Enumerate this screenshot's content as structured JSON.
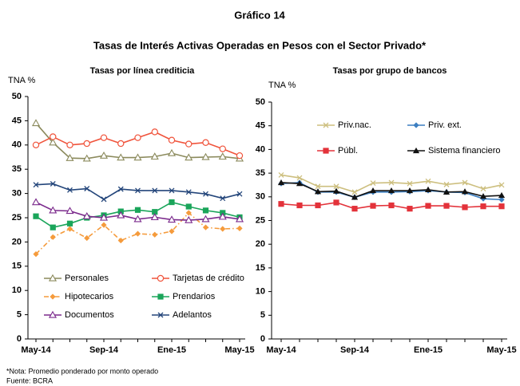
{
  "title": "Gráfico 14",
  "subtitle": "Tasas de Interés Activas Operadas en Pesos con el Sector Privado*",
  "notes": [
    "*Nota: Promedio ponderado por monto operado",
    "Fuente: BCRA"
  ],
  "chart_data": [
    {
      "type": "line",
      "title": "Tasas por línea crediticia",
      "ylabel": "TNA %",
      "categories": [
        "May-14",
        null,
        null,
        null,
        "Sep-14",
        null,
        null,
        null,
        "Ene-15",
        null,
        null,
        null,
        "May-15"
      ],
      "ylim": [
        0,
        50
      ],
      "yticks": [
        0,
        5,
        10,
        15,
        20,
        25,
        30,
        35,
        40,
        45,
        50
      ],
      "legend": "lower",
      "series": [
        {
          "name": "Personales",
          "color": "#8b8a5c",
          "marker": "triangle-open",
          "dash": "solid",
          "values": [
            44.5,
            40.5,
            37.3,
            37.2,
            37.8,
            37.4,
            37.4,
            37.6,
            38.3,
            37.4,
            37.5,
            37.6,
            37.2
          ]
        },
        {
          "name": "Tarjetas de crédito",
          "color": "#f0533b",
          "marker": "circle-open",
          "dash": "solid",
          "values": [
            40,
            41.7,
            40,
            40.3,
            41.5,
            40.3,
            41.5,
            42.7,
            41,
            40.2,
            40.5,
            39.2,
            37.8
          ]
        },
        {
          "name": "Hipotecarios",
          "color": "#f59b3c",
          "marker": "diamond",
          "dash": "dashdot",
          "values": [
            17.5,
            21,
            22.7,
            20.8,
            23.5,
            20.3,
            21.7,
            21.5,
            22.2,
            26,
            23,
            22.7,
            22.8
          ]
        },
        {
          "name": "Prendarios",
          "color": "#1aa55a",
          "marker": "square",
          "dash": "solid",
          "values": [
            25.3,
            23,
            23.8,
            25,
            25.5,
            26.3,
            26.6,
            26.2,
            28.2,
            27.3,
            26.5,
            26,
            25.1
          ]
        },
        {
          "name": "Documentos",
          "color": "#7b2a8c",
          "marker": "triangle-open",
          "dash": "solid",
          "values": [
            28.2,
            26.5,
            26.4,
            25.3,
            25,
            25.5,
            24.7,
            25.1,
            24.6,
            24.5,
            24.7,
            25.2,
            24.7
          ]
        },
        {
          "name": "Adelantos",
          "color": "#23457a",
          "marker": "x",
          "dash": "solid",
          "values": [
            31.8,
            32,
            30.7,
            31,
            28.8,
            30.9,
            30.6,
            30.6,
            30.6,
            30.3,
            29.9,
            29,
            29.9
          ]
        }
      ]
    },
    {
      "type": "line",
      "title": "Tasas por grupo de bancos",
      "ylabel": "TNA %",
      "categories": [
        "May-14",
        null,
        null,
        null,
        "Sep-14",
        null,
        null,
        null,
        "Ene-15",
        null,
        null,
        null,
        "May-15"
      ],
      "ylim": [
        0,
        50
      ],
      "yticks": [
        0,
        5,
        10,
        15,
        20,
        25,
        30,
        35,
        40,
        45,
        50
      ],
      "legend": "upper",
      "series": [
        {
          "name": "Priv.nac.",
          "color": "#cdbf7f",
          "marker": "x",
          "dash": "solid",
          "values": [
            34.6,
            34,
            32.2,
            32.2,
            31,
            32.9,
            33,
            32.8,
            33.3,
            32.6,
            33,
            31.7,
            32.5
          ]
        },
        {
          "name": "Priv. ext.",
          "color": "#3d7fc1",
          "marker": "diamond",
          "dash": "solid",
          "values": [
            32.8,
            33,
            31,
            31,
            29.9,
            31,
            31,
            31.1,
            31.3,
            31,
            30.9,
            29.6,
            29.4
          ]
        },
        {
          "name": "Públ.",
          "color": "#e3323a",
          "marker": "square",
          "dash": "solid",
          "values": [
            28.5,
            28.2,
            28.2,
            28.8,
            27.5,
            28.1,
            28.2,
            27.5,
            28.1,
            28.1,
            27.8,
            28,
            28
          ]
        },
        {
          "name": "Sistema financiero",
          "color": "#111111",
          "marker": "triangle",
          "dash": "solid",
          "values": [
            33,
            32.8,
            31.1,
            31.2,
            29.9,
            31.3,
            31.3,
            31.3,
            31.5,
            31,
            31.1,
            30.1,
            30.3
          ]
        }
      ]
    }
  ]
}
